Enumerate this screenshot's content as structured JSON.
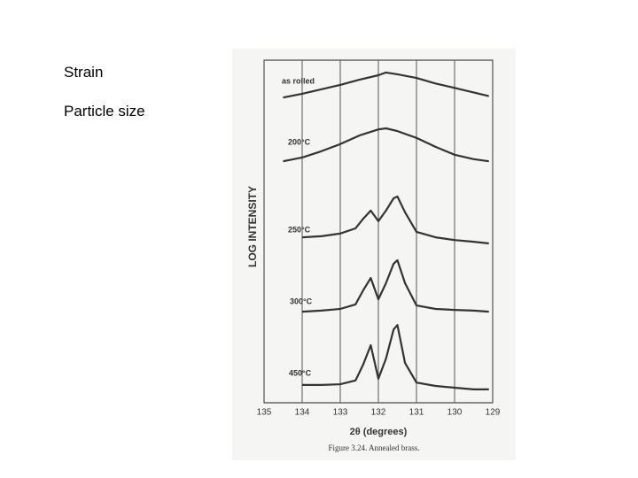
{
  "slide": {
    "bullets": [
      "Strain",
      "Particle size"
    ]
  },
  "chart_data": {
    "type": "line",
    "xlabel": "2θ (degrees)",
    "ylabel": "LOG INTENSITY",
    "caption": "Figure 3.24. Annealed brass.",
    "xlim": [
      135,
      129
    ],
    "xticks": [
      135,
      134,
      133,
      132,
      131,
      130,
      129
    ],
    "ylim": [
      0,
      100
    ],
    "grid": true,
    "series": [
      {
        "name": "as rolled",
        "color": "#333333",
        "x": [
          134.5,
          134,
          133.5,
          133,
          132.5,
          132,
          131.8,
          131.5,
          131,
          130.5,
          130,
          129.5,
          129.1
        ],
        "values": [
          89.1,
          90.2,
          91.5,
          92.8,
          94.3,
          95.6,
          96.4,
          95.9,
          94.8,
          93.2,
          91.9,
          90.6,
          89.5
        ]
      },
      {
        "name": "200°C",
        "color": "#333333",
        "x": [
          134.5,
          134,
          133.5,
          133,
          132.5,
          132,
          131.8,
          131.5,
          131,
          130.5,
          130,
          129.5,
          129.1
        ],
        "values": [
          70.5,
          71.6,
          73.4,
          75.5,
          78.0,
          79.8,
          80.1,
          79.3,
          77.3,
          74.7,
          72.4,
          71.1,
          70.5
        ]
      },
      {
        "name": "250°C",
        "color": "#333333",
        "x": [
          134,
          133.5,
          133,
          132.6,
          132.4,
          132.2,
          132,
          131.8,
          131.6,
          131.5,
          131.3,
          131,
          130.5,
          130,
          129.5,
          129.1
        ],
        "values": [
          48.3,
          48.6,
          49.4,
          50.9,
          53.7,
          56.1,
          53.0,
          56.1,
          59.7,
          60.2,
          55.6,
          49.9,
          48.3,
          47.5,
          47.0,
          46.5
        ]
      },
      {
        "name": "300°C",
        "color": "#333333",
        "x": [
          134,
          133.5,
          133,
          132.6,
          132.4,
          132.2,
          132,
          131.8,
          131.6,
          131.5,
          131.3,
          131,
          130.5,
          130,
          129.5,
          129.1
        ],
        "values": [
          26.6,
          26.9,
          27.4,
          28.7,
          32.8,
          36.4,
          30.2,
          34.9,
          40.6,
          41.6,
          34.9,
          28.4,
          27.4,
          27.1,
          26.9,
          26.6
        ]
      },
      {
        "name": "450°C",
        "color": "#333333",
        "x": [
          134,
          133.5,
          133,
          132.6,
          132.4,
          132.2,
          132,
          131.8,
          131.6,
          131.5,
          131.3,
          131,
          130.5,
          130,
          129.5,
          129.1
        ],
        "values": [
          5.2,
          5.2,
          5.4,
          6.5,
          11.1,
          16.8,
          7.0,
          12.9,
          21.4,
          22.7,
          11.6,
          5.9,
          4.9,
          4.4,
          3.9,
          3.9
        ]
      }
    ]
  }
}
